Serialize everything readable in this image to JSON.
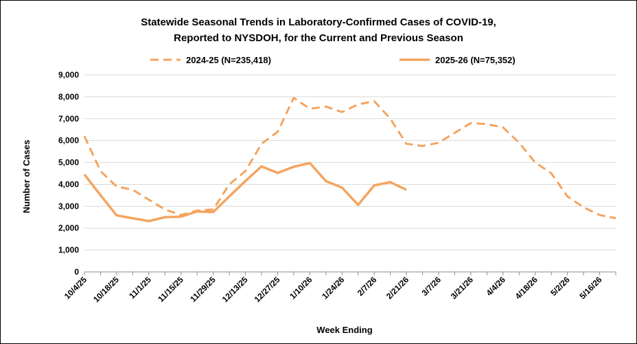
{
  "chart_data": {
    "type": "line",
    "title": "Statewide Seasonal Trends in Laboratory-Confirmed Cases of COVID-19,",
    "subtitle": "Reported to NYSDOH, for the Current and Previous Season",
    "xlabel": "Week Ending",
    "ylabel": "Number of Cases",
    "ylim": [
      0,
      9000
    ],
    "yticks": [
      0,
      1000,
      2000,
      3000,
      4000,
      5000,
      6000,
      7000,
      8000,
      9000
    ],
    "ytick_labels": [
      "0",
      "1,000",
      "2,000",
      "3,000",
      "4,000",
      "5,000",
      "6,000",
      "7,000",
      "8,000",
      "9,000"
    ],
    "grid": "horizontal",
    "legend_position": "top",
    "weeks": 34,
    "xtick_labels": [
      "10/4/25",
      "10/18/25",
      "11/1/25",
      "11/15/25",
      "11/29/25",
      "12/13/25",
      "12/27/25",
      "1/10/26",
      "1/24/26",
      "2/7/26",
      "2/21/26",
      "3/7/26",
      "3/21/26",
      "4/4/26",
      "4/18/26",
      "5/2/26",
      "5/16/26"
    ],
    "xtick_every": 2,
    "series": [
      {
        "name": "2024-25 (N=235,418)",
        "style": "dashed",
        "color": "#F4A460",
        "values": [
          6200,
          4600,
          3900,
          3750,
          3300,
          2850,
          2600,
          2800,
          2850,
          4000,
          4600,
          5850,
          6400,
          7950,
          7450,
          7550,
          7300,
          7650,
          7800,
          7000,
          5850,
          5750,
          5900,
          6350,
          6800,
          6750,
          6600,
          5900,
          5000,
          4500,
          3450,
          2950,
          2600,
          2450
        ]
      },
      {
        "name": "2025-26 (N=75,352)",
        "style": "solid",
        "color": "#F4A460",
        "values": [
          4450,
          3500,
          2580,
          2450,
          2320,
          2500,
          2520,
          2760,
          2730,
          3450,
          4150,
          4820,
          4520,
          4800,
          4970,
          4150,
          3850,
          3060,
          3950,
          4100,
          3750
        ]
      }
    ]
  }
}
